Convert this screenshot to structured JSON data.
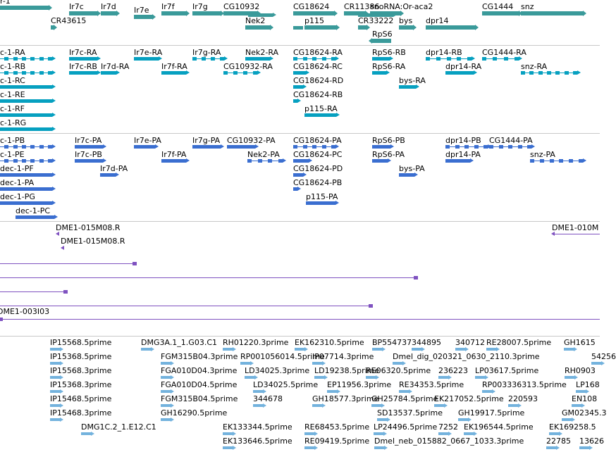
{
  "colors": {
    "gene": "#3a9a9a",
    "rna": "#06a0c0",
    "protein": "#3a6ed0",
    "clone": "#7f52c0",
    "est": "#73b2dd",
    "separator": "#c8c8c8"
  },
  "tracks": {
    "genes": {
      "rows": [
        {
          "items": [
            {
              "label": "r-1",
              "dir": "r"
            },
            {
              "label": "Ir7c",
              "dir": "r"
            },
            {
              "label": "Ir7d",
              "dir": "r"
            },
            {
              "label": "Ir7e",
              "dir": "r"
            },
            {
              "label": "Ir7f",
              "dir": "r"
            },
            {
              "label": "Ir7g",
              "dir": "r"
            },
            {
              "label": "CG10932",
              "dir": "r"
            },
            {
              "label": "CG18624",
              "dir": "r"
            },
            {
              "label": "CR11386",
              "dir": "r"
            },
            {
              "label": "snoRNA:Or-aca2",
              "dir": "r"
            },
            {
              "label": "CG1444",
              "dir": "r"
            },
            {
              "label": "snz",
              "dir": "r"
            }
          ]
        },
        {
          "items": [
            {
              "label": "CR43615",
              "dir": "r"
            },
            {
              "label": "Nek2",
              "dir": "r"
            },
            {
              "label": "p115",
              "dir": "r"
            },
            {
              "label": "CR33222",
              "dir": "r"
            },
            {
              "label": "bys",
              "dir": "r"
            },
            {
              "label": "dpr14",
              "dir": "r"
            }
          ]
        },
        {
          "items": [
            {
              "label": "RpS6",
              "dir": "l"
            }
          ]
        }
      ]
    },
    "rnas": {
      "rows": [
        {
          "items": [
            {
              "label": "c-1-RA"
            },
            {
              "label": "Ir7c-RA"
            },
            {
              "label": "Ir7e-RA"
            },
            {
              "label": "Ir7g-RA"
            },
            {
              "label": "Nek2-RA"
            },
            {
              "label": "CG18624-RA"
            },
            {
              "label": "RpS6-RB"
            },
            {
              "label": "dpr14-RB"
            },
            {
              "label": "CG1444-RA"
            }
          ]
        },
        {
          "items": [
            {
              "label": "c-1-RB"
            },
            {
              "label": "Ir7c-RB"
            },
            {
              "label": "Ir7d-RA"
            },
            {
              "label": "Ir7f-RA"
            },
            {
              "label": "CG10932-RA"
            },
            {
              "label": "CG18624-RC"
            },
            {
              "label": "RpS6-RA"
            },
            {
              "label": "dpr14-RA"
            },
            {
              "label": "snz-RA"
            }
          ]
        },
        {
          "items": [
            {
              "label": "c-1-RC"
            },
            {
              "label": "CG18624-RD"
            },
            {
              "label": "bys-RA"
            }
          ]
        },
        {
          "items": [
            {
              "label": "c-1-RE"
            },
            {
              "label": "CG18624-RB"
            }
          ]
        },
        {
          "items": [
            {
              "label": "c-1-RF"
            },
            {
              "label": "p115-RA"
            }
          ]
        },
        {
          "items": [
            {
              "label": "c-1-RG"
            }
          ]
        }
      ]
    },
    "proteins": {
      "rows": [
        {
          "items": [
            {
              "label": "c-1-PB"
            },
            {
              "label": "Ir7c-PA"
            },
            {
              "label": "Ir7e-PA"
            },
            {
              "label": "Ir7g-PA"
            },
            {
              "label": "CG10932-PA"
            },
            {
              "label": "CG18624-PA"
            },
            {
              "label": "RpS6-PB"
            },
            {
              "label": "dpr14-PB"
            },
            {
              "label": "CG1444-PA"
            }
          ]
        },
        {
          "items": [
            {
              "label": "c-1-PE"
            },
            {
              "label": "Ir7c-PB"
            },
            {
              "label": "Ir7f-PA"
            },
            {
              "label": "Nek2-PA"
            },
            {
              "label": "CG18624-PC"
            },
            {
              "label": "RpS6-PA"
            },
            {
              "label": "dpr14-PA"
            },
            {
              "label": "snz-PA"
            }
          ]
        },
        {
          "items": [
            {
              "label": "dec-1-PF"
            },
            {
              "label": "Ir7d-PA"
            },
            {
              "label": "CG18624-PD"
            },
            {
              "label": "bys-PA"
            }
          ]
        },
        {
          "items": [
            {
              "label": "dec-1-PA"
            },
            {
              "label": "CG18624-PB"
            }
          ]
        },
        {
          "items": [
            {
              "label": "dec-1-PG"
            },
            {
              "label": "p115-PA"
            }
          ]
        },
        {
          "items": [
            {
              "label": "dec-1-PC"
            }
          ]
        }
      ]
    },
    "clones": {
      "labels": [
        "DME1-015M08.R",
        "DME1-015M08.R",
        "DME1-010M",
        "DME1-003I03"
      ]
    },
    "ests": {
      "rows": [
        [
          "IP15568.5prime",
          "DMG3A.1_1.G03.C1",
          "RH01220.3prime",
          "EK162310.5prime",
          "BP554737",
          "344895",
          "340712",
          "RE28007.5prime",
          "GH1615"
        ],
        [
          "IP15368.5prime",
          "FGM315B04.3prime",
          "RP001056014.5prime",
          "IP07714.3prime",
          "Dmel_dig_020321_0630_2110.3prime",
          "54256"
        ],
        [
          "IP15568.3prime",
          "FGA010D04.3prime",
          "LD34025.3prime",
          "LD19238.5prime",
          "RE06320.5prime",
          "236223",
          "LP03617.5prime",
          "RH0903"
        ],
        [
          "IP15368.3prime",
          "FGA010D04.5prime",
          "LD34025.5prime",
          "EP11956.3prime",
          "RE34353.5prime",
          "RP003336313.5prime",
          "LP168"
        ],
        [
          "IP15468.5prime",
          "FGM315B04.5prime",
          "344678",
          "GH18577.3prime",
          "GH25784.5prime",
          "EK217052.5prime",
          "220593",
          "EN108"
        ],
        [
          "IP15468.3prime",
          "GH16290.5prime",
          "SD13537.5prime",
          "GH19917.5prime",
          "GM02345.3"
        ],
        [
          "DMG1C.2_1.E12.C1",
          "EK133344.5prime",
          "RE68453.5prime",
          "LP24496.5prime",
          "7252",
          "EK196544.5prime",
          "EK169258.5"
        ],
        [
          "EK133646.5prime",
          "RE09419.5prime",
          "Dmel_neb_015882_0667_1033.3prime",
          "22785",
          "13626"
        ]
      ]
    }
  }
}
